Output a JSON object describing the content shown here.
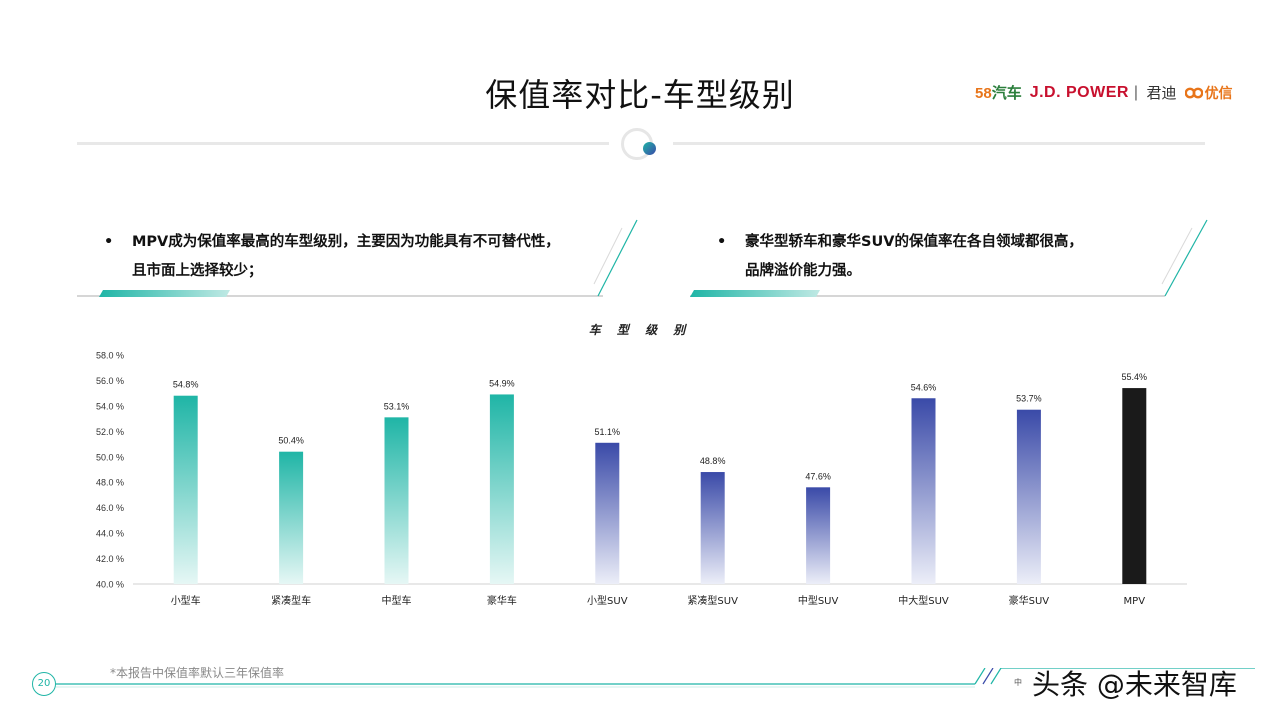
{
  "header": {
    "title": "保值率对比-车型级别",
    "logos": {
      "logo58_num": "58",
      "logo58_text": "汽车",
      "jdpower": "J.D. POWER",
      "jundi": "君迪",
      "youxin": "优信"
    }
  },
  "notes": [
    {
      "bullet": "•",
      "lines": [
        "MPV成为保值率最高的车型级别，主要因为功能具有不可替代性，",
        "且市面上选择较少；"
      ]
    },
    {
      "bullet": "•",
      "lines": [
        "豪华型轿车和豪华SUV的保值率在各自领域都很高，",
        "品牌溢价能力强。"
      ]
    }
  ],
  "chart_data": {
    "type": "bar",
    "title": "车 型 级 别",
    "categories": [
      "小型车",
      "紧凑型车",
      "中型车",
      "豪华车",
      "小型SUV",
      "紧凑型SUV",
      "中型SUV",
      "中大型SUV",
      "豪华SUV",
      "MPV"
    ],
    "values": [
      54.8,
      50.4,
      53.1,
      54.9,
      51.1,
      48.8,
      47.6,
      54.6,
      53.7,
      55.4
    ],
    "value_labels": [
      "54.8%",
      "50.4%",
      "53.1%",
      "54.9%",
      "51.1%",
      "48.8%",
      "47.6%",
      "54.6%",
      "53.7%",
      "55.4%"
    ],
    "ylim": [
      40.0,
      58.0
    ],
    "yticks": [
      "40.0 %",
      "42.0 %",
      "44.0 %",
      "46.0 %",
      "48.0 %",
      "50.0 %",
      "52.0 %",
      "54.0 %",
      "56.0 %",
      "58.0 %"
    ],
    "colors": {
      "car_top": "#1fb5a6",
      "car_bottom": "#e6f7f5",
      "suv_top": "#3a4aa8",
      "suv_bottom": "#eceef8",
      "mpv": "#1a1a1a"
    },
    "grid": false
  },
  "footer": {
    "note": "*本报告中保值率默认三年保值率",
    "page": "20",
    "tiny_mark": "中",
    "watermark": "头条 @未来智库"
  }
}
